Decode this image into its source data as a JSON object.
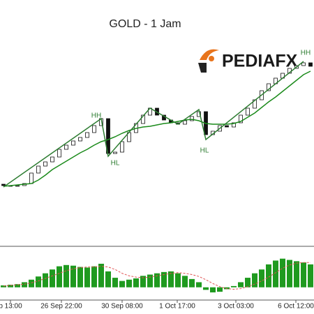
{
  "chart_data": {
    "type": "candlestick",
    "title": "GOLD - 1 Jam",
    "brand": "PEDIAFX",
    "open": [
      88,
      86,
      85,
      86,
      89,
      104,
      114,
      120,
      127,
      138,
      144,
      150,
      155,
      162,
      172,
      182,
      132,
      134,
      149,
      162,
      175,
      187,
      197,
      187,
      180,
      176,
      174,
      179,
      185,
      192,
      159,
      164,
      172,
      170,
      176,
      187,
      197,
      209,
      222,
      232,
      240,
      247,
      254,
      258,
      262
    ],
    "close": [
      86,
      85,
      86,
      89,
      104,
      114,
      120,
      127,
      138,
      144,
      150,
      155,
      162,
      172,
      182,
      132,
      134,
      149,
      162,
      175,
      187,
      197,
      187,
      180,
      176,
      174,
      179,
      185,
      192,
      159,
      164,
      172,
      170,
      176,
      187,
      197,
      209,
      222,
      232,
      240,
      247,
      254,
      258,
      262,
      257
    ],
    "series": [
      {
        "name": "MA",
        "color": "#1a8a1a",
        "values": [
          85,
          86,
          87,
          88,
          89,
          94,
          101,
          109,
          115,
          121,
          127,
          133,
          138,
          144,
          149,
          152,
          156,
          161,
          165,
          168,
          170,
          171,
          173,
          175,
          176,
          178,
          180,
          181,
          179,
          175,
          174,
          174,
          174,
          175,
          178,
          184,
          190,
          198,
          206,
          213,
          221,
          229,
          237,
          245,
          250
        ]
      }
    ],
    "zigzag": {
      "color": "#2e7d32",
      "x": [
        0,
        14,
        15,
        21,
        25,
        28,
        29,
        43
      ],
      "values": [
        84,
        182,
        128,
        197,
        174,
        195,
        152,
        264
      ]
    },
    "annotations": [
      {
        "text": "HH",
        "x": 13.3,
        "y": 186
      },
      {
        "text": "HL",
        "x": 16,
        "y": 118
      },
      {
        "text": "HL",
        "x": 28.8,
        "y": 136
      },
      {
        "text": "HH",
        "x": 43.3,
        "y": 276
      }
    ],
    "xlim": [
      -0.5,
      44.5
    ],
    "ylim": [
      0,
      350
    ],
    "xticks": [
      {
        "value": 1,
        "label": "p 13:00"
      },
      {
        "value": 8.3,
        "label": "26 Sep 22:00"
      },
      {
        "value": 17,
        "label": "30 Sep 08:00"
      },
      {
        "value": 24.9,
        "label": "1 Oct 17:00"
      },
      {
        "value": 33.3,
        "label": "3 Oct 03:00"
      },
      {
        "value": 41.9,
        "label": "6 Oct 12:00"
      }
    ],
    "indicator": {
      "ylim": [
        -20,
        60
      ],
      "color": "#1f9a1f",
      "values": [
        3,
        4,
        5,
        8,
        12,
        17,
        22,
        28,
        33,
        35,
        34,
        32,
        31,
        33,
        37,
        25,
        15,
        10,
        12,
        14,
        18,
        20,
        22,
        24,
        25,
        22,
        18,
        13,
        8,
        -4,
        -8,
        -7,
        -3,
        2,
        8,
        15,
        22,
        28,
        36,
        42,
        45,
        43,
        41,
        39,
        36
      ],
      "signal": {
        "color": "#e05050",
        "values": [
          2,
          3,
          4,
          5,
          7,
          10,
          14,
          18,
          22,
          26,
          29,
          31,
          32,
          32,
          33,
          32,
          28,
          22,
          18,
          16,
          15,
          16,
          18,
          20,
          22,
          23,
          22,
          20,
          17,
          12,
          6,
          1,
          -2,
          -3,
          -2,
          1,
          5,
          10,
          16,
          23,
          30,
          35,
          38,
          39,
          39
        ]
      }
    }
  }
}
